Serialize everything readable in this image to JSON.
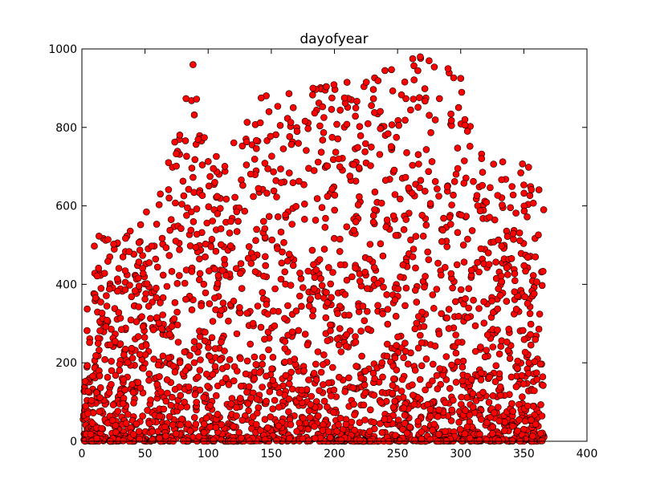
{
  "chart_data": {
    "type": "scatter",
    "title": "dayofyear",
    "xlabel": "",
    "ylabel": "",
    "xlim": [
      0,
      400
    ],
    "ylim": [
      0,
      1000
    ],
    "xticks": [
      0,
      50,
      100,
      150,
      200,
      250,
      300,
      350,
      400
    ],
    "yticks": [
      0,
      200,
      400,
      600,
      800,
      1000
    ],
    "xtick_labels": [
      "0",
      "50",
      "100",
      "150",
      "200",
      "250",
      "300",
      "350",
      "400"
    ],
    "ytick_labels": [
      "0",
      "200",
      "400",
      "600",
      "800",
      "1000"
    ],
    "grid": false,
    "marker_color": "#ff0000",
    "marker_edge_color": "#000000",
    "series": [
      {
        "name": "dayofyear",
        "x_range": [
          1,
          366
        ],
        "upper_envelope": [
          {
            "x": 0,
            "y": 280
          },
          {
            "x": 10,
            "y": 520
          },
          {
            "x": 30,
            "y": 540
          },
          {
            "x": 60,
            "y": 610
          },
          {
            "x": 88,
            "y": 960
          },
          {
            "x": 100,
            "y": 720
          },
          {
            "x": 140,
            "y": 880
          },
          {
            "x": 180,
            "y": 900
          },
          {
            "x": 210,
            "y": 920
          },
          {
            "x": 240,
            "y": 940
          },
          {
            "x": 265,
            "y": 980
          },
          {
            "x": 285,
            "y": 960
          },
          {
            "x": 300,
            "y": 920
          },
          {
            "x": 320,
            "y": 700
          },
          {
            "x": 345,
            "y": 740
          },
          {
            "x": 366,
            "y": 680
          }
        ],
        "outliers": [
          {
            "x": 88,
            "y": 960
          },
          {
            "x": 268,
            "y": 980
          },
          {
            "x": 262,
            "y": 975
          },
          {
            "x": 275,
            "y": 970
          },
          {
            "x": 290,
            "y": 950
          },
          {
            "x": 240,
            "y": 945
          },
          {
            "x": 210,
            "y": 915
          },
          {
            "x": 300,
            "y": 925
          },
          {
            "x": 183,
            "y": 900
          },
          {
            "x": 142,
            "y": 875
          },
          {
            "x": 89,
            "y": 832
          },
          {
            "x": 198,
            "y": 875
          }
        ]
      }
    ]
  }
}
